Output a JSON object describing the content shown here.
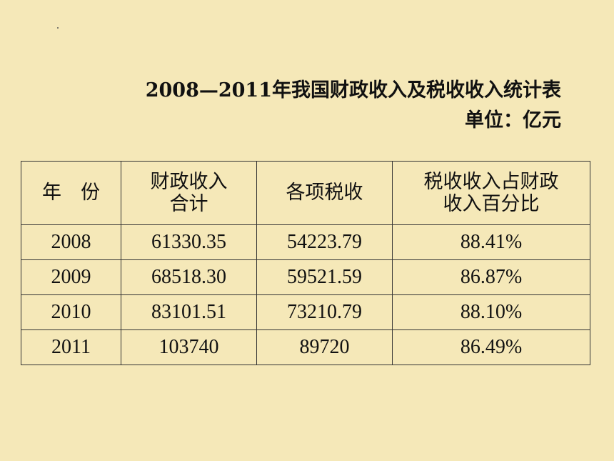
{
  "title": "2008—2011年我国财政收入及税收收入统计表",
  "unit": "单位：亿元",
  "table": {
    "headers": [
      "年　份",
      "财政收入\n合计",
      "各项税收",
      "税收收入占财政\n收入百分比"
    ],
    "rows": [
      [
        "2008",
        "61330.35",
        "54223.79",
        "88.41%"
      ],
      [
        "2009",
        "68518.30",
        "59521.59",
        "86.87%"
      ],
      [
        "2010",
        "83101.51",
        "73210.79",
        "88.10%"
      ],
      [
        "2011",
        "103740",
        "89720",
        "86.49%"
      ]
    ]
  }
}
